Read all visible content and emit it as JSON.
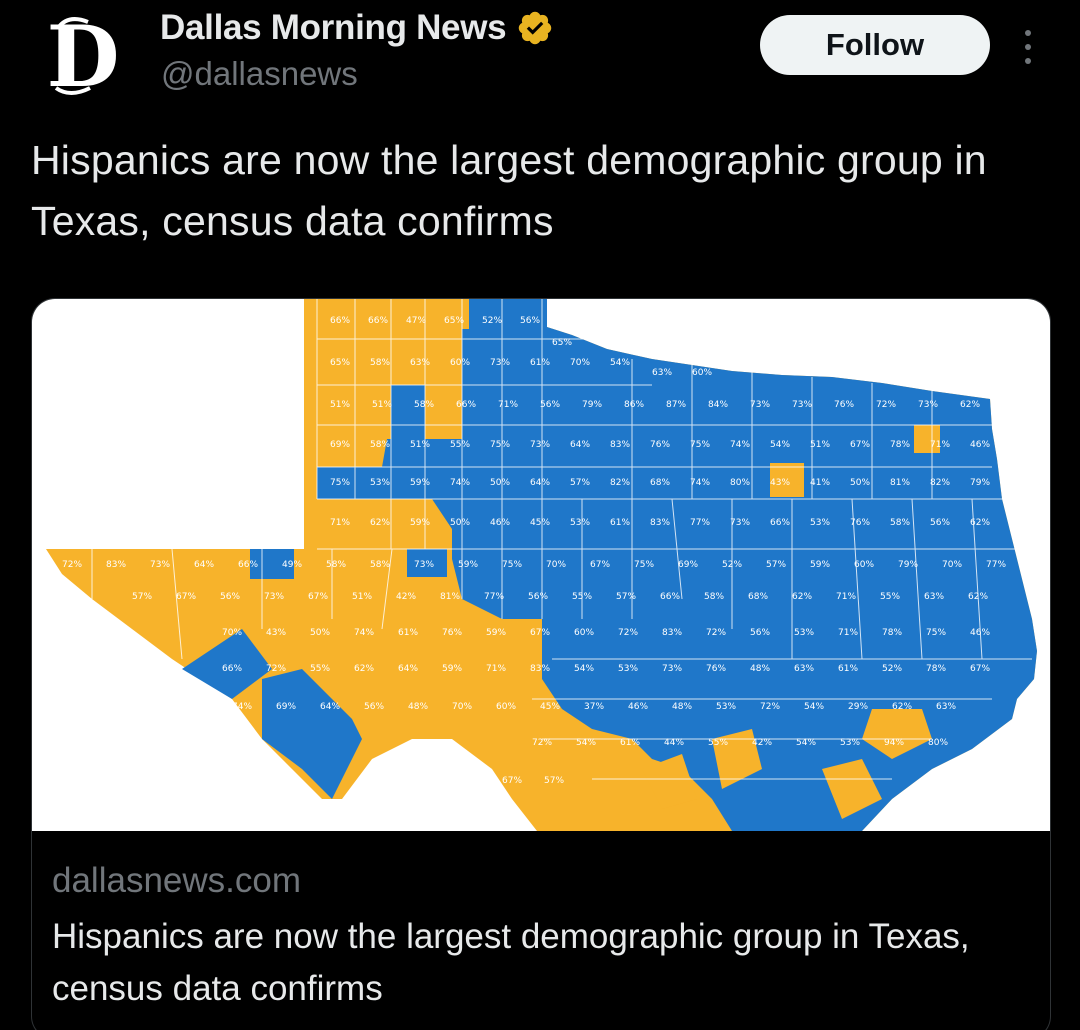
{
  "account": {
    "display_name": "Dallas Morning News",
    "handle": "@dallasnews",
    "logo_letter": "D",
    "verified_icon": "gold-verified-badge-icon",
    "verified_color": "#e8b321"
  },
  "actions": {
    "follow_label": "Follow",
    "more_icon": "more-options-icon"
  },
  "tweet": {
    "text": "Hispanics are now the largest demographic group in Texas, census data confirms"
  },
  "card": {
    "domain": "dallasnews.com",
    "title": "Hispanics are now the largest demographic group in Texas, census data confirms",
    "image": {
      "colors": {
        "orange": "#f7b32b",
        "blue": "#1f77c9"
      },
      "county_labels": [
        "66%",
        "66%",
        "47%",
        "65%",
        "52%",
        "56%",
        "65%",
        "65%",
        "58%",
        "63%",
        "60%",
        "73%",
        "61%",
        "70%",
        "54%",
        "63%",
        "60%",
        "51%",
        "51%",
        "58%",
        "66%",
        "71%",
        "56%",
        "79%",
        "86%",
        "87%",
        "84%",
        "73%",
        "73%",
        "76%",
        "72%",
        "73%",
        "62%",
        "69%",
        "58%",
        "51%",
        "55%",
        "75%",
        "73%",
        "64%",
        "83%",
        "76%",
        "75%",
        "74%",
        "54%",
        "51%",
        "67%",
        "78%",
        "71%",
        "46%",
        "75%",
        "53%",
        "59%",
        "74%",
        "50%",
        "64%",
        "57%",
        "82%",
        "68%",
        "74%",
        "80%",
        "43%",
        "41%",
        "50%",
        "81%",
        "82%",
        "79%",
        "71%",
        "62%",
        "59%",
        "50%",
        "46%",
        "45%",
        "53%",
        "61%",
        "83%",
        "77%",
        "73%",
        "66%",
        "53%",
        "76%",
        "58%",
        "56%",
        "62%",
        "72%",
        "83%",
        "73%",
        "64%",
        "66%",
        "49%",
        "58%",
        "58%",
        "73%",
        "59%",
        "75%",
        "70%",
        "67%",
        "75%",
        "69%",
        "52%",
        "57%",
        "59%",
        "60%",
        "79%",
        "70%",
        "77%",
        "57%",
        "67%",
        "56%",
        "73%",
        "67%",
        "51%",
        "42%",
        "81%",
        "77%",
        "56%",
        "55%",
        "57%",
        "66%",
        "58%",
        "68%",
        "62%",
        "71%",
        "55%",
        "63%",
        "62%",
        "70%",
        "43%",
        "50%",
        "74%",
        "61%",
        "76%",
        "59%",
        "67%",
        "60%",
        "72%",
        "83%",
        "72%",
        "56%",
        "53%",
        "71%",
        "78%",
        "75%",
        "46%",
        "66%",
        "72%",
        "55%",
        "62%",
        "64%",
        "59%",
        "71%",
        "83%",
        "54%",
        "53%",
        "73%",
        "76%",
        "48%",
        "63%",
        "61%",
        "52%",
        "78%",
        "67%",
        "74%",
        "69%",
        "64%",
        "56%",
        "48%",
        "70%",
        "60%",
        "45%",
        "37%",
        "46%",
        "48%",
        "53%",
        "72%",
        "54%",
        "29%",
        "62%",
        "63%",
        "72%",
        "54%",
        "61%",
        "44%",
        "55%",
        "42%",
        "54%",
        "53%",
        "94%",
        "80%",
        "67%",
        "57%"
      ]
    }
  }
}
